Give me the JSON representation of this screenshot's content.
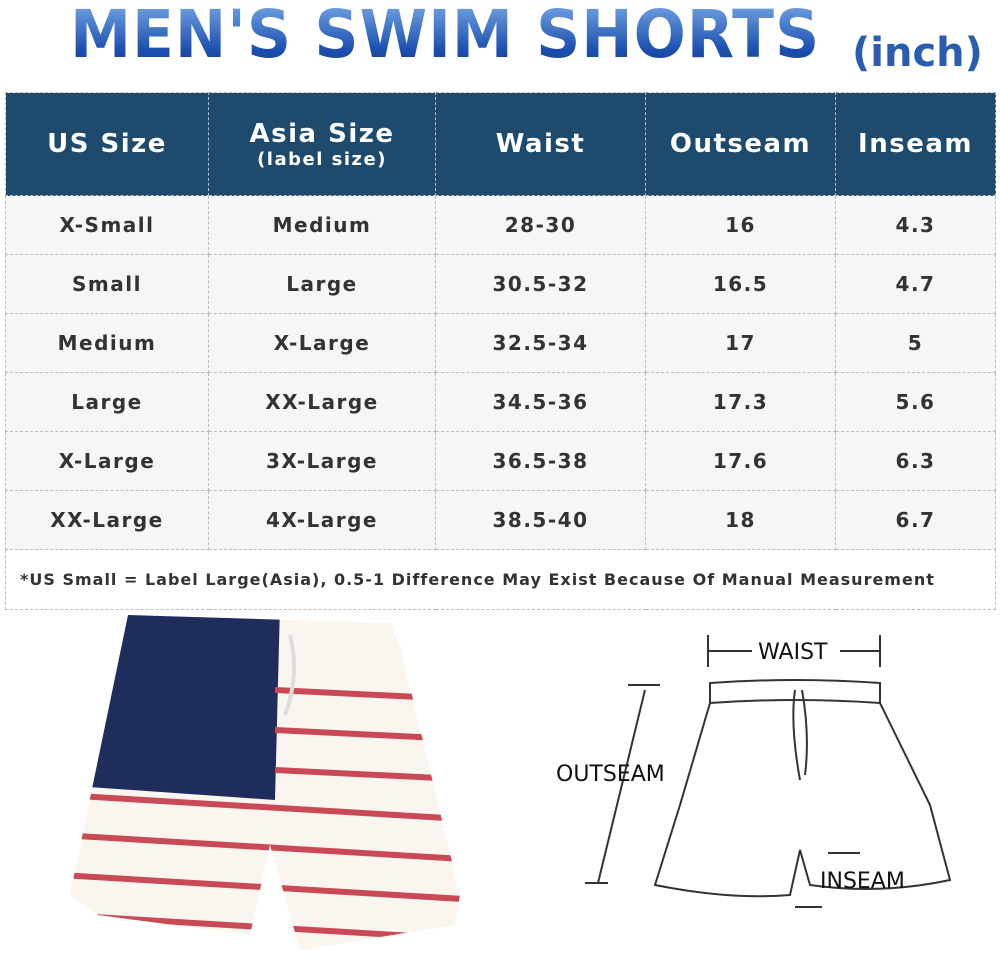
{
  "title": "MEN'S SWIM SHORTS",
  "unit": "(inch)",
  "table": {
    "headers": [
      "US Size",
      "Asia Size",
      "Waist",
      "Outseam",
      "Inseam"
    ],
    "header_sub": "(label size)",
    "rows": [
      [
        "X-Small",
        "Medium",
        "28-30",
        "16",
        "4.3"
      ],
      [
        "Small",
        "Large",
        "30.5-32",
        "16.5",
        "4.7"
      ],
      [
        "Medium",
        "X-Large",
        "32.5-34",
        "17",
        "5"
      ],
      [
        "Large",
        "XX-Large",
        "34.5-36",
        "17.3",
        "5.6"
      ],
      [
        "X-Large",
        "3X-Large",
        "36.5-38",
        "17.6",
        "6.3"
      ],
      [
        "XX-Large",
        "4X-Large",
        "38.5-40",
        "18",
        "6.7"
      ]
    ],
    "note": "*US Small = Label Large(Asia), 0.5-1 Difference May Exist Because Of Manual Measurement"
  },
  "diagram": {
    "waist": "WAIST",
    "outseam": "OUTSEAM",
    "inseam": "INSEAM"
  }
}
